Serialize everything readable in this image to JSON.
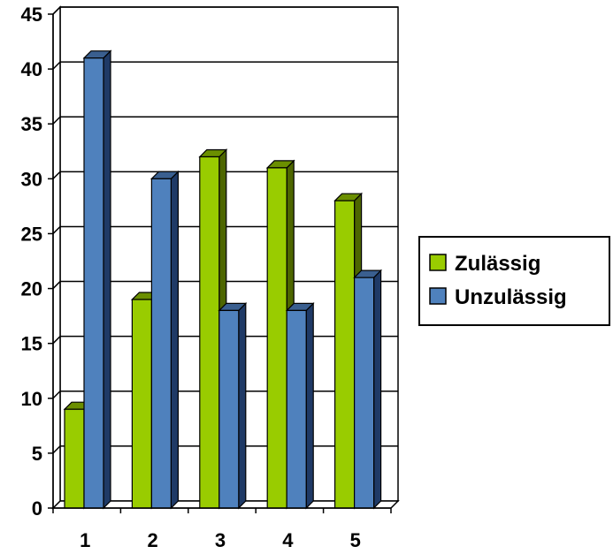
{
  "chart_data": {
    "type": "bar",
    "categories": [
      "1",
      "2",
      "3",
      "4",
      "5"
    ],
    "series": [
      {
        "name": "Zulässig",
        "values": [
          9,
          19,
          32,
          31,
          28
        ],
        "color": "#99CC00",
        "side_color": "#4D6600",
        "top_color": "#6B8F00"
      },
      {
        "name": "Unzulässig",
        "values": [
          41,
          30,
          18,
          18,
          21
        ],
        "color": "#4F81BD",
        "side_color": "#1F3A66",
        "top_color": "#3A5F8F"
      }
    ],
    "ylim": [
      0,
      45
    ],
    "yticks": [
      "0",
      "5",
      "10",
      "15",
      "20",
      "25",
      "30",
      "35",
      "40",
      "45"
    ],
    "grid": true,
    "legend_position": "right",
    "title": "",
    "xlabel": "",
    "ylabel": ""
  }
}
